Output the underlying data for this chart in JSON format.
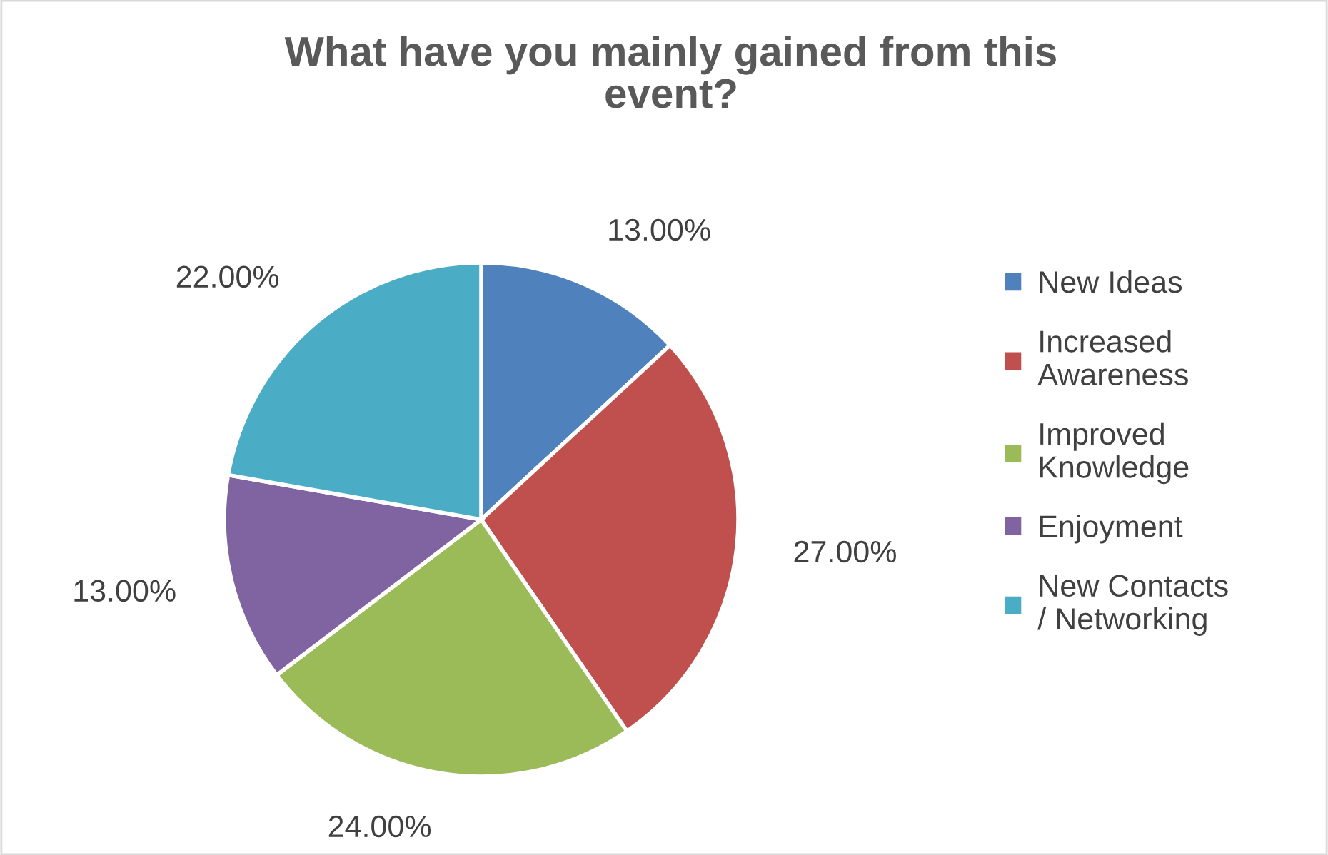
{
  "chart_data": {
    "type": "pie",
    "title": "What have you mainly gained from this event?",
    "categories": [
      "New Ideas",
      "Increased Awareness",
      "Improved Knowledge",
      "Enjoyment",
      "New Contacts / Networking"
    ],
    "values": [
      13,
      27,
      24,
      13,
      22
    ],
    "value_labels": [
      "13.00%",
      "27.00%",
      "24.00%",
      "13.00%",
      "22.00%"
    ],
    "colors": [
      "#4f81bd",
      "#c0504d",
      "#9bbb59",
      "#8064a2",
      "#4bacc6"
    ],
    "legend": "right"
  }
}
